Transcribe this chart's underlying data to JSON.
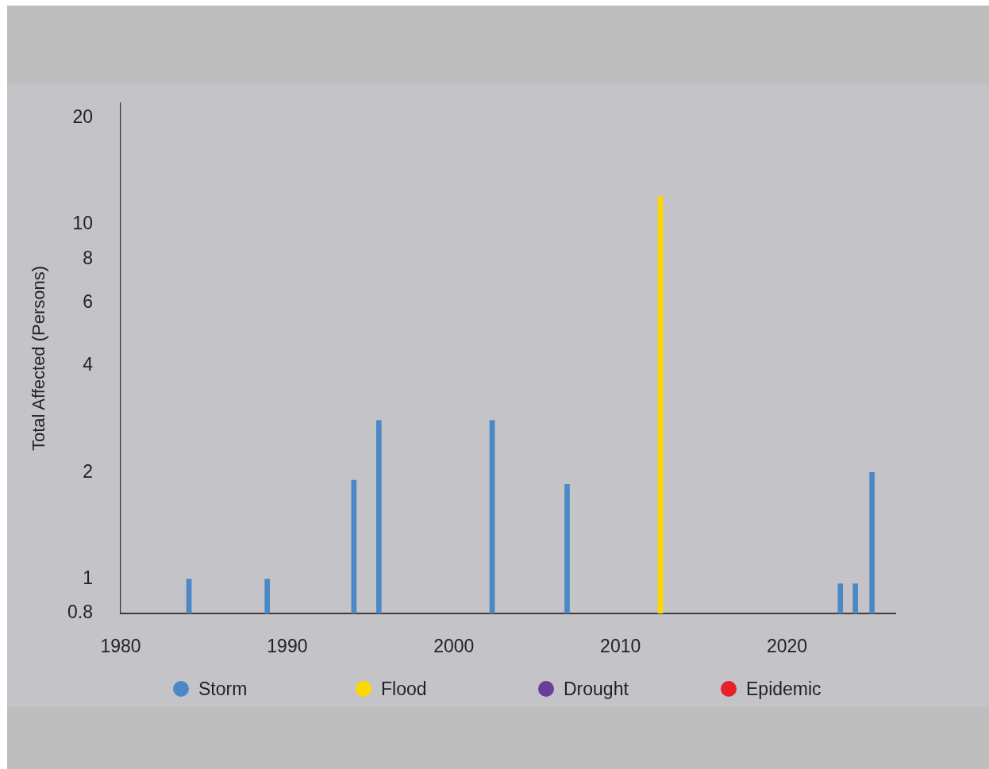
{
  "chart_data": {
    "type": "bar",
    "ylabel": "Total Affected (Persons)",
    "xlim": [
      1980,
      2026.5
    ],
    "xticks": [
      1980,
      1990,
      2000,
      2010,
      2020
    ],
    "ylim": [
      0.8,
      22
    ],
    "yticks": [
      0.8,
      1,
      2,
      4,
      6,
      8,
      10,
      20
    ],
    "log": true,
    "grid": false,
    "legend": "bottom",
    "series": [
      {
        "name": "Storm",
        "color": "#4a88c7",
        "x": [
          1984.1,
          1988.8,
          1994.0,
          1995.5,
          2002.3,
          2006.8,
          2023.2,
          2024.1,
          2025.1
        ],
        "values": [
          1,
          1,
          1.9,
          2.8,
          2.8,
          1.85,
          0.97,
          0.97,
          2
        ]
      },
      {
        "name": "Flood",
        "color": "#fed700",
        "x": [
          2012.4
        ],
        "values": [
          12
        ]
      },
      {
        "name": "Drought",
        "color": "#6a3d9a"
      },
      {
        "name": "Epidemic",
        "color": "#e8202a"
      }
    ]
  }
}
